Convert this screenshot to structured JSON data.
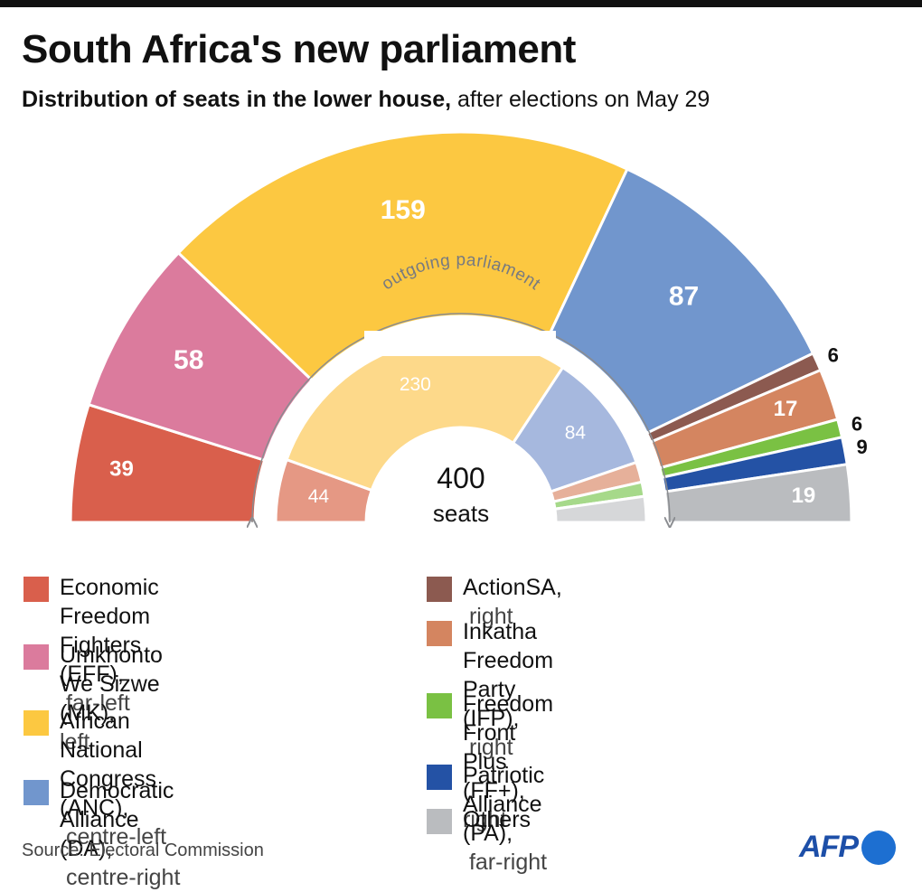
{
  "header": {
    "title": "South Africa's new parliament",
    "subtitle_bold": "Distribution of seats in the lower house,",
    "subtitle_rest": " after elections on May 29"
  },
  "chart_data": {
    "type": "parliament-semicircle",
    "total_label_number": "400",
    "total_label_unit": "seats",
    "inner_ring_label": "outgoing parliament",
    "new_parliament": [
      {
        "party": "Economic Freedom Fighters (EFF)",
        "seats": 39,
        "color": "#d95f4c"
      },
      {
        "party": "Umkhonto We Sizwe (MK)",
        "seats": 58,
        "color": "#db7b9d"
      },
      {
        "party": "African National Congress (ANC)",
        "seats": 159,
        "color": "#fcc841"
      },
      {
        "party": "Democratic Alliance (DA)",
        "seats": 87,
        "color": "#7196cd"
      },
      {
        "party": "ActionSA",
        "seats": 6,
        "color": "#8c5a50"
      },
      {
        "party": "Inkatha Freedom Party (IFP)",
        "seats": 17,
        "color": "#d48560"
      },
      {
        "party": "Freedom Front Plus (FF+)",
        "seats": 6,
        "color": "#7ac143"
      },
      {
        "party": "Patriotic Alliance (PA)",
        "seats": 9,
        "color": "#2452a5"
      },
      {
        "party": "Others",
        "seats": 19,
        "color": "#babcbf"
      }
    ],
    "outgoing_parliament": [
      {
        "party": "Economic Freedom Fighters (EFF)",
        "seats": 44,
        "label": "44",
        "color": "#e59884"
      },
      {
        "party": "African National Congress (ANC)",
        "seats": 230,
        "label": "230",
        "color": "#fdd98a"
      },
      {
        "party": "Democratic Alliance (DA)",
        "seats": 84,
        "label": "84",
        "color": "#a6b8de"
      },
      {
        "party": "Inkatha Freedom Party (IFP)",
        "seats": 14,
        "label": "",
        "color": "#e6b09a"
      },
      {
        "party": "Freedom Front Plus (FF+)",
        "seats": 10,
        "label": "",
        "color": "#a6d98a"
      },
      {
        "party": "Others",
        "seats": 18,
        "label": "",
        "color": "#d6d7d9"
      }
    ]
  },
  "legend": {
    "left": [
      {
        "name": "Economic Freedom Fighters",
        "line2_name": "(EFF),",
        "desc": " far-left",
        "color": "#d95f4c"
      },
      {
        "name": "Umkhonto We Sizwe (MK),",
        "line2_name": "",
        "desc": "left",
        "color": "#db7b9d"
      },
      {
        "name": "African National Congress",
        "line2_name": "(ANC),",
        "desc": " centre-left",
        "color": "#fcc841"
      },
      {
        "name": "Democratic Alliance",
        "line2_name": "(DA),",
        "desc": " centre-right",
        "color": "#7196cd"
      }
    ],
    "right": [
      {
        "name": "ActionSA,",
        "line2_name": "",
        "desc": " right",
        "color": "#8c5a50"
      },
      {
        "name": "Inkatha Freedom Party",
        "line2_name": "(IFP),",
        "desc": " right",
        "color": "#d48560"
      },
      {
        "name": "Freedom Front Plus (FF+),",
        "line2_name": "",
        "desc": "right",
        "color": "#7ac143"
      },
      {
        "name": "Patriotic Alliance (PA),",
        "line2_name": "",
        "desc": " far-right",
        "color": "#2452a5"
      },
      {
        "name": "Others",
        "line2_name": "",
        "desc": "",
        "color": "#babcbf"
      }
    ]
  },
  "footer": {
    "source": "Source: Electoral Commission",
    "logo_text": "AFP"
  }
}
